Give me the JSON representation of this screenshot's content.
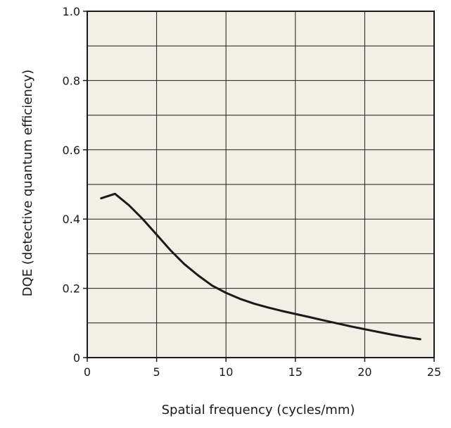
{
  "chart_data": {
    "type": "line",
    "title": "",
    "xlabel": "Spatial frequency (cycles/mm)",
    "ylabel": "DQE (detective quantum efficiency)",
    "xlim": [
      0,
      25
    ],
    "ylim": [
      0,
      1.0
    ],
    "grid": true,
    "x_ticks": [
      0,
      5,
      10,
      15,
      20,
      25
    ],
    "x_tick_labels": [
      "0",
      "5",
      "10",
      "15",
      "20",
      "25"
    ],
    "y_ticks": [
      0,
      0.2,
      0.4,
      0.6,
      0.8,
      1.0
    ],
    "y_tick_labels": [
      "0",
      "0.2",
      "0.4",
      "0.6",
      "0.8",
      "1.0"
    ],
    "y_minor_grid": [
      0.1,
      0.3,
      0.5,
      0.7,
      0.9
    ],
    "series": [
      {
        "x": [
          1,
          2,
          3,
          4,
          5,
          6,
          7,
          8,
          9,
          10,
          11,
          12,
          13,
          14,
          15,
          16,
          17,
          18,
          19,
          20,
          21,
          22,
          23,
          24
        ],
        "y": [
          0.46,
          0.473,
          0.44,
          0.4,
          0.355,
          0.31,
          0.27,
          0.237,
          0.208,
          0.187,
          0.17,
          0.156,
          0.145,
          0.135,
          0.126,
          0.117,
          0.108,
          0.099,
          0.09,
          0.082,
          0.074,
          0.066,
          0.059,
          0.053
        ],
        "color": "#1a1a1a"
      }
    ],
    "colors": {
      "plot_background": "#f2f0e6",
      "grid": "#1a1a1a",
      "axis": "#1a1a1a",
      "line": "#1a1a1a"
    }
  }
}
